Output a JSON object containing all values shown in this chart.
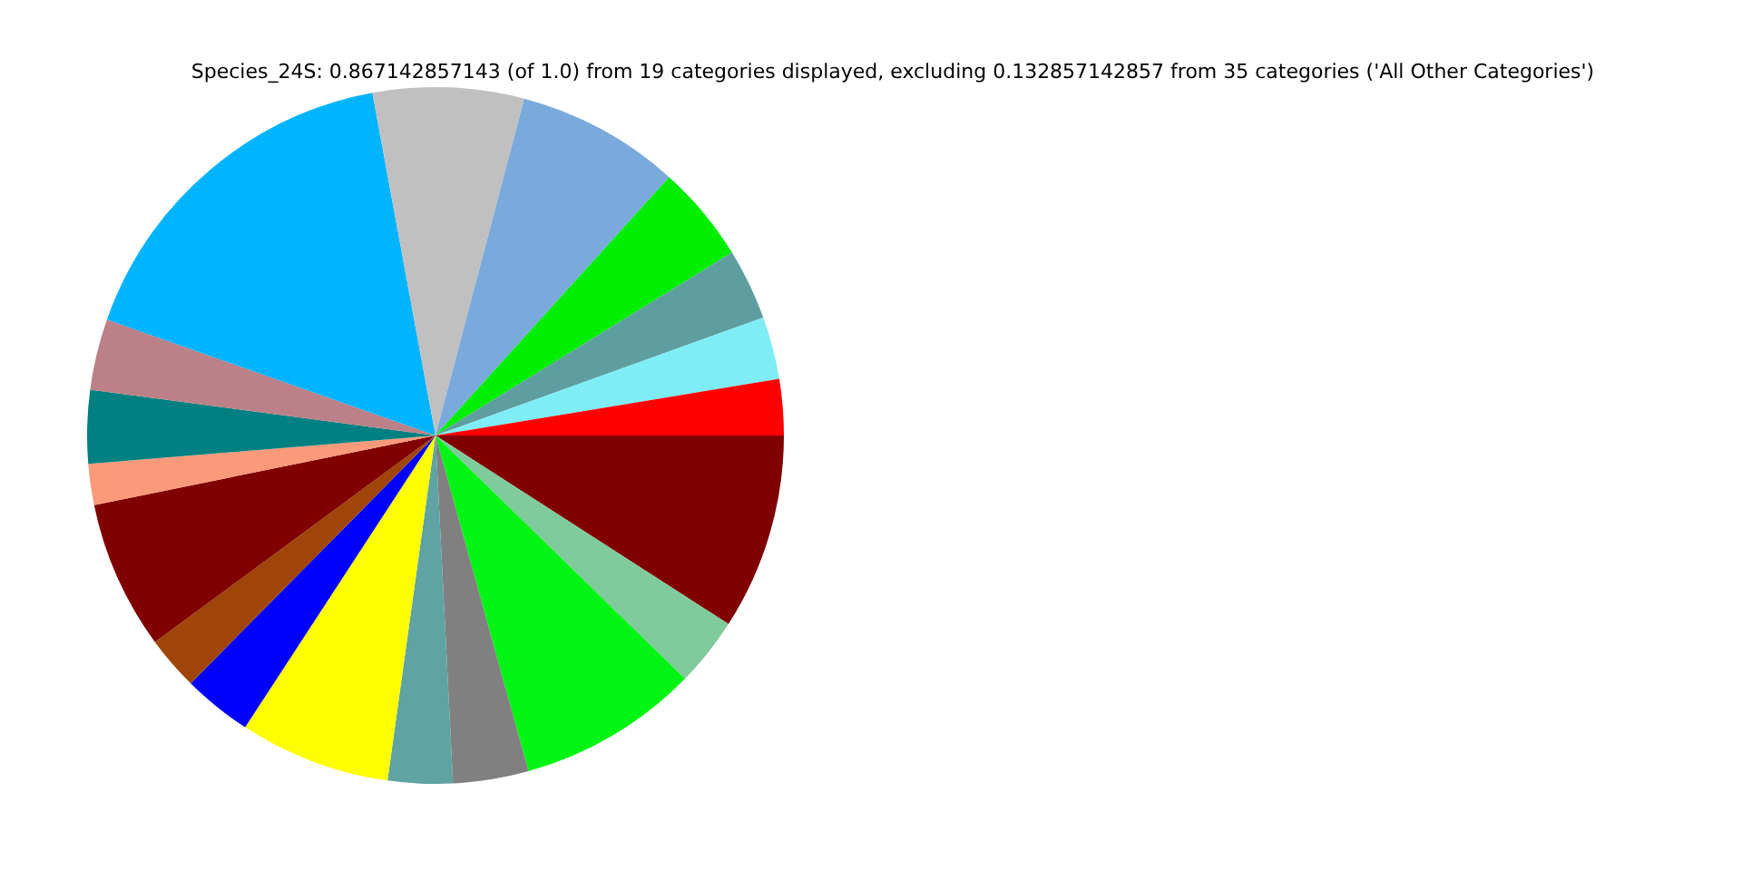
{
  "chart_data": {
    "type": "pie",
    "title": "Species_24S: 0.867142857143 (of 1.0) from 19 categories displayed, excluding 0.132857142857 from 35 categories ('All Other Categories')",
    "categories": [
      null,
      null,
      null,
      null,
      null,
      null,
      null,
      null,
      null,
      null,
      null,
      null,
      null,
      null,
      null,
      null,
      null,
      null,
      null
    ],
    "values": [
      2.6,
      2.9,
      3.3,
      4.5,
      7.6,
      7.0,
      16.7,
      3.3,
      3.4,
      1.9,
      6.9,
      2.5,
      3.2,
      7.0,
      3.0,
      3.5,
      8.4,
      3.2,
      9.1
    ],
    "colors": [
      "#ff0000",
      "#7fedf4",
      "#5f9ea0",
      "#00ee00",
      "#7aaadb",
      "#c0c0c0",
      "#00b4ff",
      "#bc8088",
      "#008080",
      "#fa9a7a",
      "#800000",
      "#a0450a",
      "#0000ff",
      "#ffff00",
      "#5fa3a3",
      "#808080",
      "#00f514",
      "#7fcb9b",
      "#800000"
    ],
    "legend": false
  }
}
